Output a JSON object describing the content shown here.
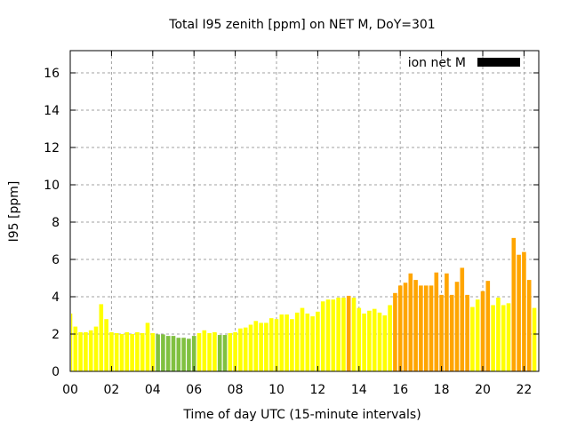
{
  "chart_data": {
    "type": "bar",
    "title": "Total I95 zenith [ppm] on NET M, DoY=301",
    "xlabel": "Time of day UTC (15-minute intervals)",
    "ylabel": "I95 [ppm]",
    "xlim": [
      0,
      23
    ],
    "ylim": [
      0,
      17
    ],
    "x_interval_hours": 0.25,
    "grid": true,
    "legend": {
      "label": "ion net M",
      "position": "top-right",
      "color": "#000000"
    },
    "xticks": [
      "00",
      "02",
      "04",
      "06",
      "08",
      "10",
      "12",
      "14",
      "16",
      "18",
      "20",
      "22"
    ],
    "yticks": [
      "0",
      "2",
      "4",
      "6",
      "8",
      "10",
      "12",
      "14",
      "16"
    ],
    "color_scale": {
      "low": "#80c040",
      "mid": "#ffff00",
      "high": "#ffa500",
      "low_below": 2,
      "high_from": 4
    },
    "values": [
      3.1,
      2.4,
      2.1,
      2.1,
      2.2,
      2.4,
      3.6,
      2.8,
      2.1,
      2.05,
      2.0,
      2.1,
      2.0,
      2.1,
      2.05,
      2.6,
      2.05,
      1.98,
      1.98,
      1.9,
      1.9,
      1.8,
      1.8,
      1.75,
      1.9,
      2.05,
      2.2,
      2.05,
      2.1,
      1.95,
      1.95,
      2.05,
      2.1,
      2.3,
      2.35,
      2.5,
      2.7,
      2.6,
      2.6,
      2.85,
      2.8,
      3.05,
      3.05,
      2.8,
      3.15,
      3.4,
      3.1,
      2.95,
      3.2,
      3.75,
      3.85,
      3.85,
      3.95,
      3.95,
      4.05,
      3.95,
      3.4,
      3.1,
      3.25,
      3.35,
      3.15,
      3.0,
      3.55,
      4.2,
      4.6,
      4.75,
      5.25,
      4.9,
      4.6,
      4.6,
      4.6,
      5.3,
      4.1,
      5.25,
      4.1,
      4.8,
      5.55,
      4.1,
      3.45,
      3.85,
      4.3,
      4.85,
      3.55,
      3.95,
      3.55,
      3.65,
      7.15,
      6.25,
      6.4,
      4.9,
      3.4
    ]
  }
}
